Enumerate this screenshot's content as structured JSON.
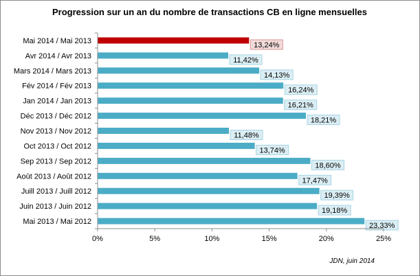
{
  "chart_data": {
    "type": "bar",
    "orientation": "horizontal",
    "title": "Progression sur un an du nombre de transactions CB en ligne mensuelles",
    "categories": [
      "Mai 2014 / Mai 2013",
      "Avr 2014 / Avr 2013",
      "Mars 2014 / Mars 2013",
      "Fév 2014 / Fév 2013",
      "Jan 2014 / Jan 2013",
      "Déc 2013 / Déc 2012",
      "Nov 2013 / Nov 2012",
      "Oct 2013 / Oct 2012",
      "Sep 2013 / Sep 2012",
      "Août 2013 / Août 2012",
      "Juill 2013 / Juill 2012",
      "Juin 2013 / Juin 2012",
      "Mai 2013 / Mai 2012"
    ],
    "values": [
      13.24,
      11.42,
      14.13,
      16.24,
      16.21,
      18.21,
      11.48,
      13.74,
      18.6,
      17.47,
      19.39,
      19.18,
      23.33
    ],
    "data_labels": [
      "13,24%",
      "11,42%",
      "14,13%",
      "16,24%",
      "16,21%",
      "18,21%",
      "11,48%",
      "13,74%",
      "18,60%",
      "17,47%",
      "19,39%",
      "19,18%",
      "23,33%"
    ],
    "xlim": [
      0,
      25
    ],
    "xticks": [
      0,
      5,
      10,
      15,
      20,
      25
    ],
    "xtick_labels": [
      "0%",
      "5%",
      "10%",
      "15%",
      "20%",
      "25%"
    ],
    "xlabel": "",
    "ylabel": "",
    "highlight_index": 0,
    "colors": {
      "bar": "#4bacc6",
      "highlight": "#c00000",
      "label_fill": "#dbeef4",
      "label_border": "#a6d4e3",
      "highlight_label_fill": "#f2dcdb",
      "highlight_label_border": "#d99694",
      "axis": "#8c8c8c"
    }
  },
  "source": "JDN, juin 2014"
}
